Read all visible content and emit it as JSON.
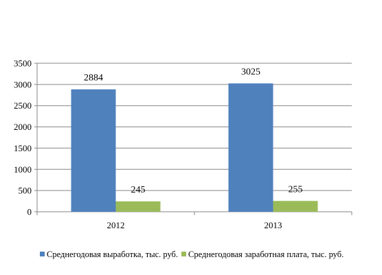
{
  "chart_data": {
    "type": "bar",
    "title": "",
    "xlabel": "",
    "ylabel": "",
    "categories": [
      "2012",
      "2013"
    ],
    "ylim": [
      0,
      3500
    ],
    "yticks": [
      0,
      500,
      1000,
      1500,
      2000,
      2500,
      3000,
      3500
    ],
    "grid": true,
    "legend_position": "bottom",
    "series": [
      {
        "name": "Среднегодовая выработка, тыс. руб.",
        "color": "#4F81BD",
        "values": [
          2884,
          3025
        ]
      },
      {
        "name": "Среднегодовая заработная плата, тыс. руб.",
        "color": "#9BBB59",
        "values": [
          245,
          255
        ]
      }
    ]
  }
}
